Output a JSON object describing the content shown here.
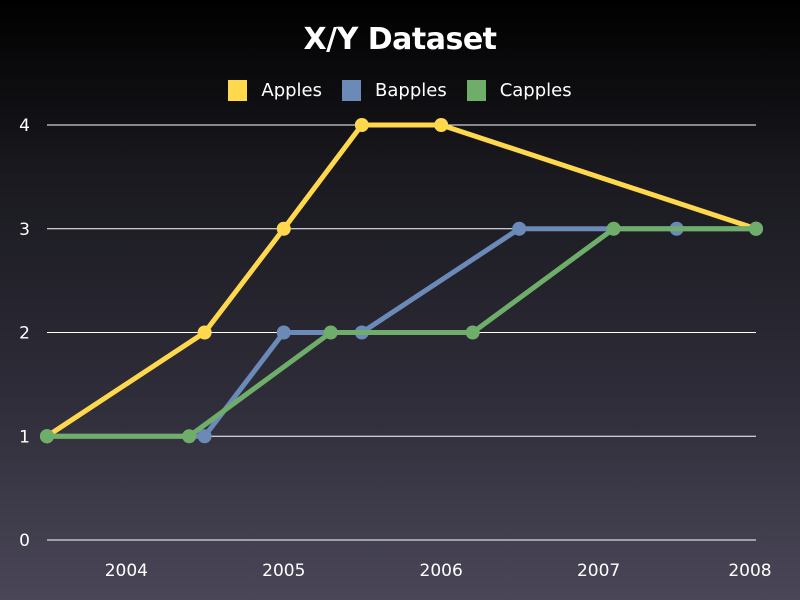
{
  "chart_data": {
    "type": "line",
    "title": "X/Y Dataset",
    "xlabel": "",
    "ylabel": "",
    "x_ticks": [
      "2004",
      "2005",
      "2006",
      "2007",
      "2008"
    ],
    "y_ticks": [
      "0",
      "1",
      "2",
      "3",
      "4"
    ],
    "xlim": [
      "2003-07-01",
      "2008-01-01"
    ],
    "ylim": [
      0,
      4
    ],
    "grid": "horizontal",
    "legend": "top",
    "series": [
      {
        "name": "Apples",
        "color": "#ffd84d",
        "points": [
          [
            "2003-07-01",
            1
          ],
          [
            "2004-07-01",
            2
          ],
          [
            "2005-01-01",
            3
          ],
          [
            "2005-07-01",
            4
          ],
          [
            "2006-01-01",
            4
          ],
          [
            "2008-01-01",
            3
          ]
        ]
      },
      {
        "name": "Bapples",
        "color": "#6b8ab8",
        "points": [
          [
            "2003-07-01",
            1
          ],
          [
            "2004-07-01",
            1
          ],
          [
            "2005-01-01",
            2
          ],
          [
            "2005-07-01",
            2
          ],
          [
            "2006-07-01",
            3
          ],
          [
            "2007-07-01",
            3
          ],
          [
            "2008-01-01",
            3
          ]
        ]
      },
      {
        "name": "Capples",
        "color": "#6fae6a",
        "points": [
          [
            "2003-07-01",
            1
          ],
          [
            "2004-05-26",
            1
          ],
          [
            "2005-04-20",
            2
          ],
          [
            "2006-03-15",
            2
          ],
          [
            "2007-02-05",
            3
          ],
          [
            "2008-01-01",
            3
          ]
        ]
      }
    ]
  }
}
